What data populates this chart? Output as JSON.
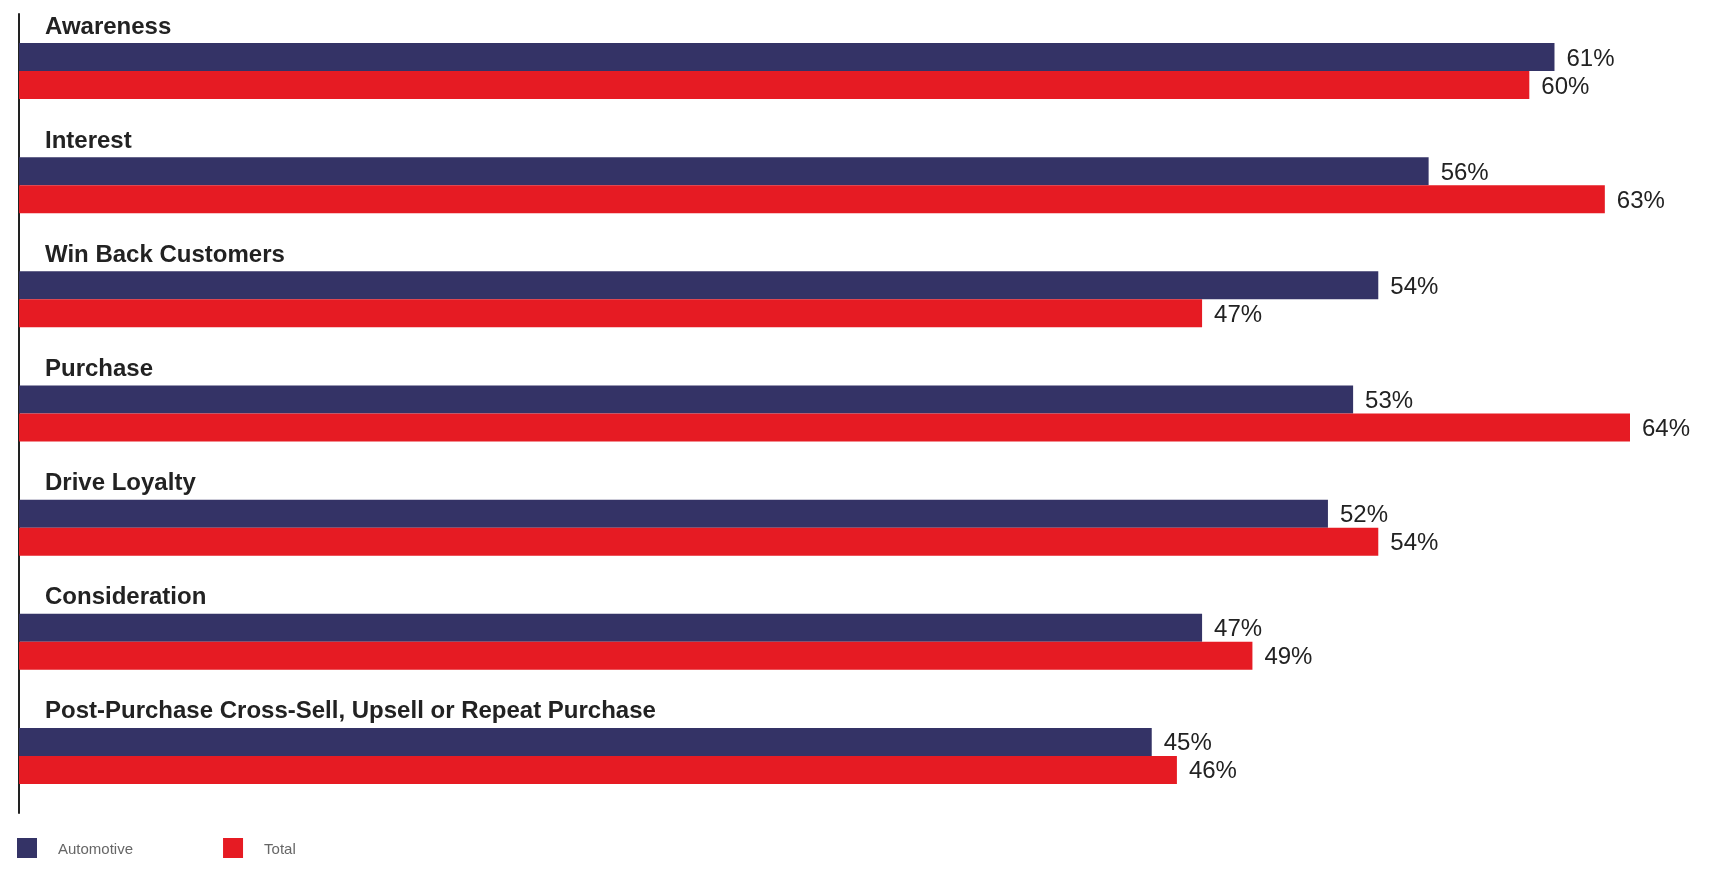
{
  "chart_data": {
    "type": "bar",
    "orientation": "horizontal",
    "categories": [
      "Awareness",
      "Interest",
      "Win Back Customers",
      "Purchase",
      "Drive Loyalty",
      "Consideration",
      "Post-Purchase Cross-Sell, Upsell or Repeat Purchase"
    ],
    "series": [
      {
        "name": "Automotive",
        "color": "#343366",
        "values": [
          61,
          56,
          54,
          53,
          52,
          47,
          45
        ],
        "value_labels": [
          "61%",
          "56%",
          "54%",
          "53%",
          "52%",
          "47%",
          "45%"
        ]
      },
      {
        "name": "Total",
        "color": "#e61b23",
        "values": [
          60,
          63,
          47,
          64,
          54,
          49,
          46
        ],
        "value_labels": [
          "60%",
          "63%",
          "47%",
          "64%",
          "54%",
          "49%",
          "46%"
        ]
      }
    ],
    "legend": "bottom left"
  }
}
